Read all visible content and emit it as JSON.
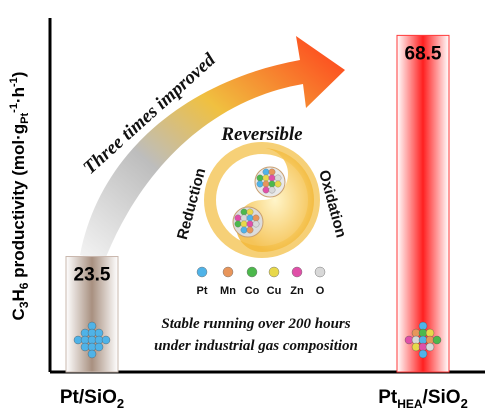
{
  "chart_data": {
    "type": "bar",
    "categories": [
      "Pt/SiO2",
      "PtHEA/SiO2"
    ],
    "category_parts": [
      {
        "main": "Pt/SiO",
        "sub": "2",
        "tail": ""
      },
      {
        "main": "Pt",
        "sub": "HEA",
        "tail": "/SiO"
      }
    ],
    "category_tail_sub": [
      "",
      "2"
    ],
    "values": [
      23.5,
      68.5
    ],
    "value_labels": [
      "23.5",
      "68.5"
    ],
    "ylim": [
      0,
      70
    ],
    "ylabel": {
      "prefix": "C",
      "sub1": "3",
      "mid": "H",
      "sub2": "6",
      "rest": " productivity (mol·g",
      "sub3": "Pt",
      "sup3": "-1",
      "dot": "·h",
      "sup4": "-1",
      "close": ")"
    },
    "bar_colors": [
      "#c9b8ae",
      "#ff3a3a"
    ],
    "annotations": {
      "arrow_text": "Three times improved",
      "center_title": "Reversible",
      "left_curve_label": "Reduction",
      "right_curve_label": "Oxidation",
      "element_legend": [
        "Pt",
        "Mn",
        "Co",
        "Cu",
        "Zn",
        "O"
      ],
      "element_colors": [
        "#4fb3e8",
        "#e8955a",
        "#4cb84c",
        "#e8d84a",
        "#e04fa8",
        "#d8d8d8"
      ],
      "footer_line1": "Stable running over 200 hours",
      "footer_line2": "under industrial gas composition"
    }
  }
}
